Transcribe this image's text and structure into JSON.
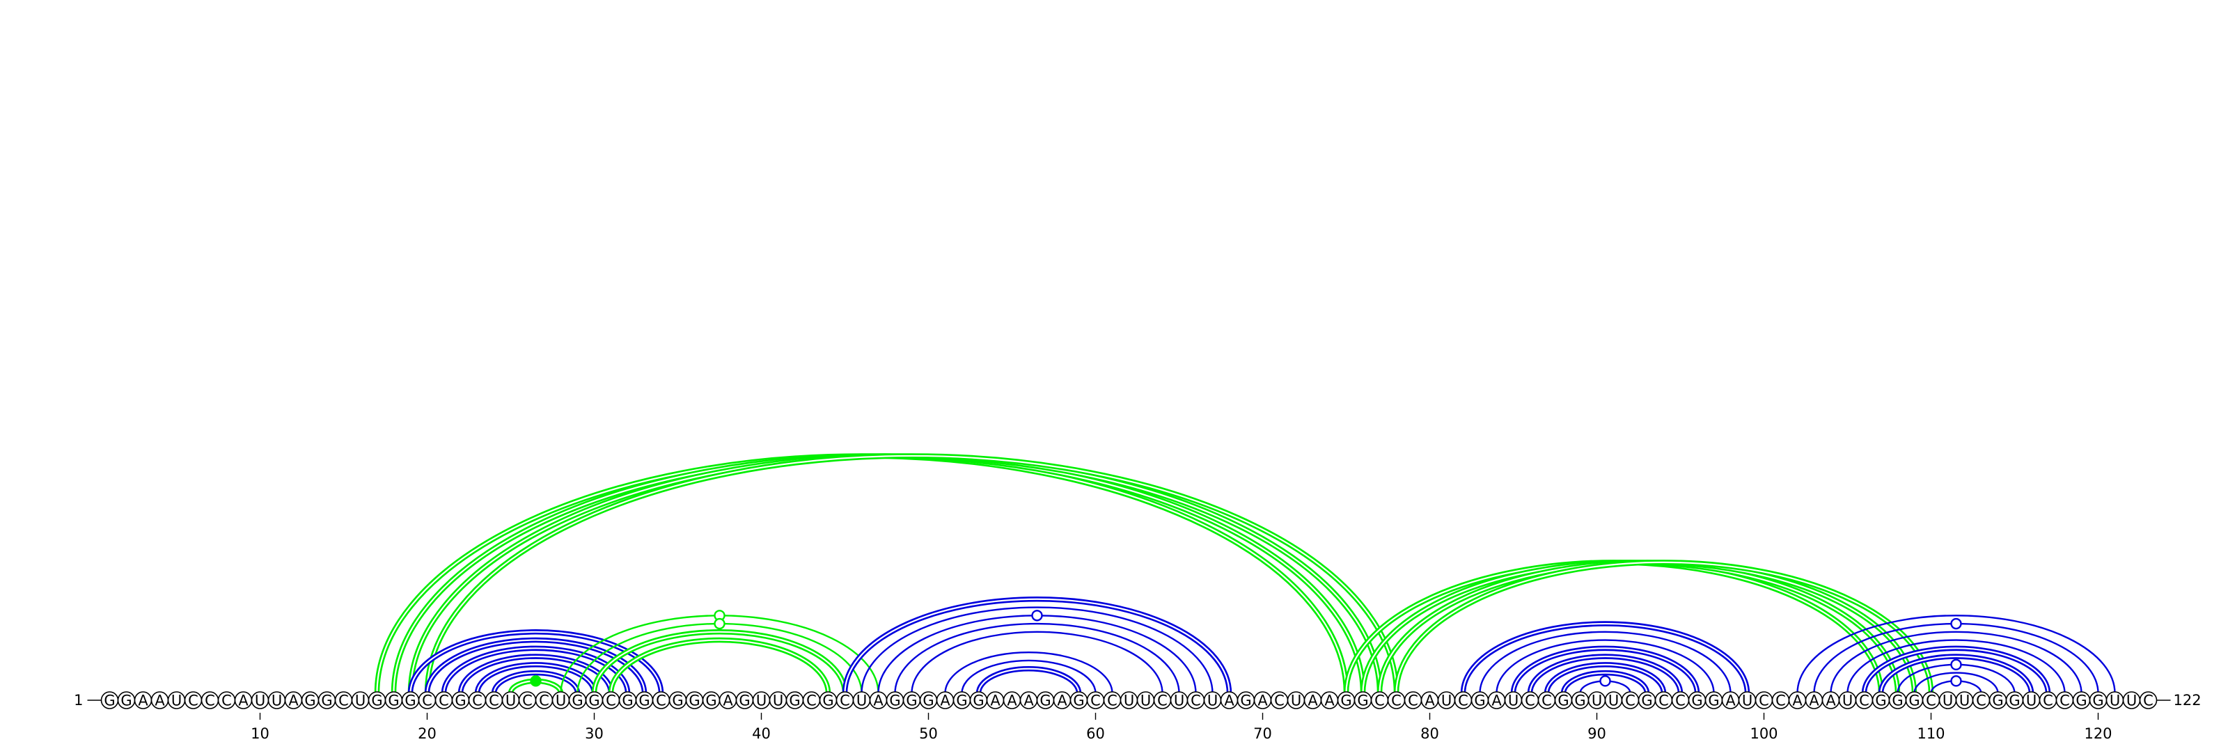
{
  "chart_data": {
    "type": "arc-diagram",
    "sequence": "GGAAUCCCAUUAGGCUGGGCCGCCUCCUGGCGGCGGGAGUUGCGCUAGGGAGGAAAGAGCCUUCUCUAGACUAAGGCCCAUCGAUCCGGUUCGCCGGAUCCAAAUCGGGCUUCGGUCCGGUUC",
    "start_label": "1",
    "end_label": "122",
    "tick_labels": [
      "10",
      "20",
      "30",
      "40",
      "50",
      "60",
      "70",
      "80",
      "90",
      "100",
      "110",
      "120"
    ],
    "colors": {
      "green": "#00ee00",
      "blue": "#0000dd"
    },
    "arcs": [
      {
        "i": 17,
        "j": 75,
        "color": "green",
        "double": true
      },
      {
        "i": 18,
        "j": 76,
        "color": "green",
        "double": true
      },
      {
        "i": 19,
        "j": 77,
        "color": "green",
        "double": true
      },
      {
        "i": 20,
        "j": 78,
        "color": "green",
        "double": true
      },
      {
        "i": 19,
        "j": 34,
        "color": "blue",
        "double": true
      },
      {
        "i": 20,
        "j": 33,
        "color": "blue",
        "double": true
      },
      {
        "i": 21,
        "j": 32,
        "color": "blue",
        "double": true
      },
      {
        "i": 22,
        "j": 31,
        "color": "blue",
        "double": true
      },
      {
        "i": 23,
        "j": 30,
        "color": "blue",
        "double": true
      },
      {
        "i": 24,
        "j": 29,
        "color": "blue",
        "double": true
      },
      {
        "i": 25,
        "j": 28,
        "color": "green",
        "double": true,
        "marker": "filled"
      },
      {
        "i": 28,
        "j": 47,
        "color": "green",
        "double": false,
        "marker": "open"
      },
      {
        "i": 29,
        "j": 46,
        "color": "green",
        "double": false,
        "marker": "open"
      },
      {
        "i": 30,
        "j": 45,
        "color": "green",
        "double": true
      },
      {
        "i": 31,
        "j": 44,
        "color": "green",
        "double": true
      },
      {
        "i": 45,
        "j": 68,
        "color": "blue",
        "double": true
      },
      {
        "i": 46,
        "j": 67,
        "color": "blue",
        "double": false
      },
      {
        "i": 47,
        "j": 66,
        "color": "blue",
        "double": false,
        "marker": "open"
      },
      {
        "i": 48,
        "j": 65,
        "color": "blue",
        "double": false
      },
      {
        "i": 49,
        "j": 64,
        "color": "blue",
        "double": false
      },
      {
        "i": 51,
        "j": 61,
        "color": "blue",
        "double": false
      },
      {
        "i": 52,
        "j": 60,
        "color": "blue",
        "double": false
      },
      {
        "i": 53,
        "j": 59,
        "color": "blue",
        "double": true
      },
      {
        "i": 75,
        "j": 107,
        "color": "green",
        "double": true
      },
      {
        "i": 76,
        "j": 108,
        "color": "green",
        "double": true
      },
      {
        "i": 77,
        "j": 109,
        "color": "green",
        "double": true
      },
      {
        "i": 78,
        "j": 110,
        "color": "green",
        "double": true
      },
      {
        "i": 82,
        "j": 99,
        "color": "blue",
        "double": true
      },
      {
        "i": 83,
        "j": 98,
        "color": "blue",
        "double": false
      },
      {
        "i": 84,
        "j": 97,
        "color": "blue",
        "double": false
      },
      {
        "i": 85,
        "j": 96,
        "color": "blue",
        "double": true
      },
      {
        "i": 86,
        "j": 95,
        "color": "blue",
        "double": true
      },
      {
        "i": 87,
        "j": 94,
        "color": "blue",
        "double": true
      },
      {
        "i": 88,
        "j": 93,
        "color": "blue",
        "double": true
      },
      {
        "i": 89,
        "j": 92,
        "color": "blue",
        "double": false,
        "marker": "open"
      },
      {
        "i": 102,
        "j": 121,
        "color": "blue",
        "double": false
      },
      {
        "i": 103,
        "j": 120,
        "color": "blue",
        "double": false,
        "marker": "open"
      },
      {
        "i": 104,
        "j": 119,
        "color": "blue",
        "double": false
      },
      {
        "i": 105,
        "j": 118,
        "color": "blue",
        "double": false
      },
      {
        "i": 106,
        "j": 117,
        "color": "blue",
        "double": true
      },
      {
        "i": 107,
        "j": 116,
        "color": "blue",
        "double": true
      },
      {
        "i": 108,
        "j": 115,
        "color": "blue",
        "double": false,
        "marker": "open"
      },
      {
        "i": 109,
        "j": 114,
        "color": "blue",
        "double": false
      },
      {
        "i": 110,
        "j": 113,
        "color": "blue",
        "double": false,
        "marker": "open"
      }
    ]
  }
}
